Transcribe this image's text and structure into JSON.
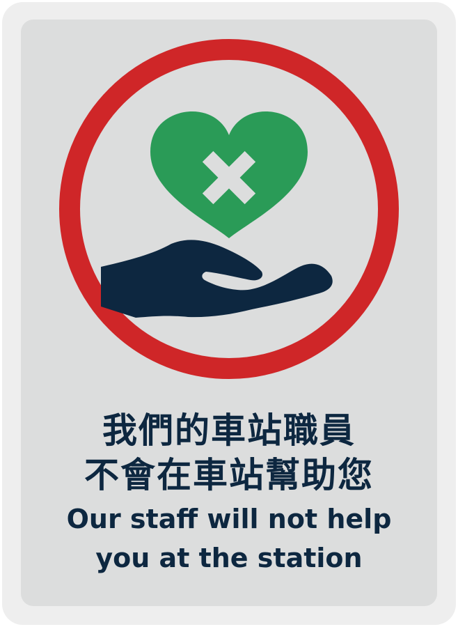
{
  "sign": {
    "colors": {
      "frame": "#eeeeee",
      "panel": "#dcdddd",
      "prohibition_ring": "#cf2628",
      "heart": "#2a9b57",
      "cross": "#dcdddd",
      "hand": "#0d2740",
      "text": "#0d2740"
    },
    "icons": [
      "prohibition-ring-icon",
      "heart-icon",
      "cross-icon",
      "hand-icon"
    ],
    "text_zh_line1": "我們的車站職員",
    "text_zh_line2": "不會在車站幫助您",
    "text_en_line1": "Our staff will not help",
    "text_en_line2": "you at the station"
  }
}
